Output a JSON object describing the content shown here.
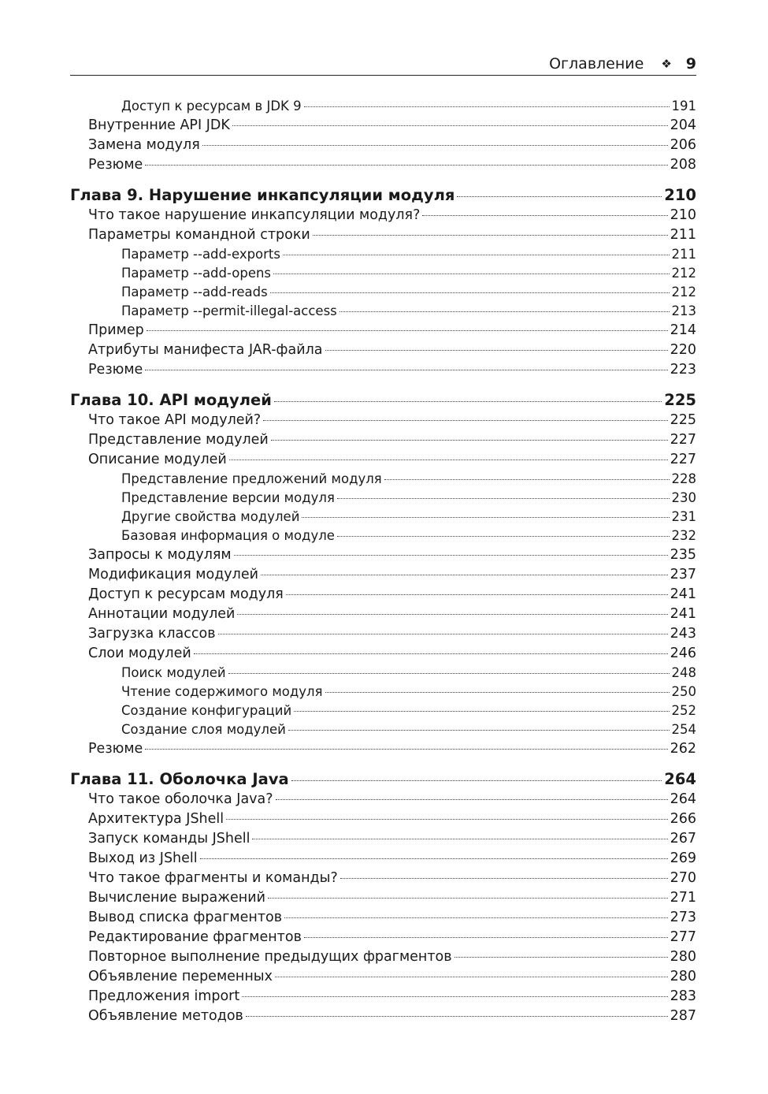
{
  "header": {
    "title": "Оглавление",
    "ornament": "❖",
    "page_number": "9"
  },
  "entries": [
    {
      "level": 2,
      "title": "Доступ к ресурсам в JDK 9",
      "page": "191"
    },
    {
      "level": 1,
      "title": "Внутренние API JDK",
      "page": "204"
    },
    {
      "level": 1,
      "title": "Замена модуля",
      "page": "206"
    },
    {
      "level": 1,
      "title": "Резюме",
      "page": "208"
    },
    {
      "level": 0,
      "title": "Глава 9. Нарушение инкапсуляции модуля",
      "page": "210"
    },
    {
      "level": 1,
      "title": "Что такое нарушение инкапсуляции модуля?",
      "page": "210"
    },
    {
      "level": 1,
      "title": "Параметры командной строки",
      "page": "211"
    },
    {
      "level": 2,
      "title": "Параметр --add-exports",
      "page": "211"
    },
    {
      "level": 2,
      "title": "Параметр --add-opens",
      "page": "212"
    },
    {
      "level": 2,
      "title": "Параметр --add-reads",
      "page": "212"
    },
    {
      "level": 2,
      "title": "Параметр --permit-illegal-access",
      "page": "213"
    },
    {
      "level": 1,
      "title": "Пример",
      "page": "214"
    },
    {
      "level": 1,
      "title": "Атрибуты манифеста JAR-файла",
      "page": "220"
    },
    {
      "level": 1,
      "title": "Резюме",
      "page": "223"
    },
    {
      "level": 0,
      "title": "Глава 10. API модулей",
      "page": "225"
    },
    {
      "level": 1,
      "title": "Что такое API модулей?",
      "page": "225"
    },
    {
      "level": 1,
      "title": "Представление модулей",
      "page": "227"
    },
    {
      "level": 1,
      "title": "Описание модулей",
      "page": "227"
    },
    {
      "level": 2,
      "title": "Представление предложений модуля",
      "page": "228"
    },
    {
      "level": 2,
      "title": "Представление версии модуля",
      "page": "230"
    },
    {
      "level": 2,
      "title": "Другие свойства модулей",
      "page": "231"
    },
    {
      "level": 2,
      "title": "Базовая информация о модуле",
      "page": "232"
    },
    {
      "level": 1,
      "title": "Запросы к модулям",
      "page": "235"
    },
    {
      "level": 1,
      "title": "Модификация модулей",
      "page": "237"
    },
    {
      "level": 1,
      "title": "Доступ к ресурсам модуля",
      "page": "241"
    },
    {
      "level": 1,
      "title": "Аннотации модулей",
      "page": "241"
    },
    {
      "level": 1,
      "title": "Загрузка классов",
      "page": "243"
    },
    {
      "level": 1,
      "title": "Слои модулей",
      "page": "246"
    },
    {
      "level": 2,
      "title": "Поиск модулей",
      "page": "248"
    },
    {
      "level": 2,
      "title": "Чтение содержимого модуля",
      "page": "250"
    },
    {
      "level": 2,
      "title": "Создание конфигураций",
      "page": "252"
    },
    {
      "level": 2,
      "title": "Создание слоя модулей",
      "page": "254"
    },
    {
      "level": 1,
      "title": "Резюме",
      "page": "262"
    },
    {
      "level": 0,
      "title": "Глава 11. Оболочка Java",
      "page": "264"
    },
    {
      "level": 1,
      "title": "Что такое оболочка Java?",
      "page": "264"
    },
    {
      "level": 1,
      "title": "Архитектура JShell",
      "page": "266"
    },
    {
      "level": 1,
      "title": "Запуск команды JShell",
      "page": "267"
    },
    {
      "level": 1,
      "title": "Выход из JShell",
      "page": "269"
    },
    {
      "level": 1,
      "title": "Что такое фрагменты и команды?",
      "page": "270"
    },
    {
      "level": 1,
      "title": "Вычисление выражений",
      "page": "271"
    },
    {
      "level": 1,
      "title": "Вывод списка фрагментов",
      "page": "273"
    },
    {
      "level": 1,
      "title": "Редактирование фрагментов",
      "page": "277"
    },
    {
      "level": 1,
      "title": "Повторное выполнение предыдущих фрагментов",
      "page": "280"
    },
    {
      "level": 1,
      "title": "Объявление переменных",
      "page": "280"
    },
    {
      "level": 1,
      "title": "Предложения import",
      "page": "283"
    },
    {
      "level": 1,
      "title": "Объявление методов",
      "page": "287"
    }
  ]
}
